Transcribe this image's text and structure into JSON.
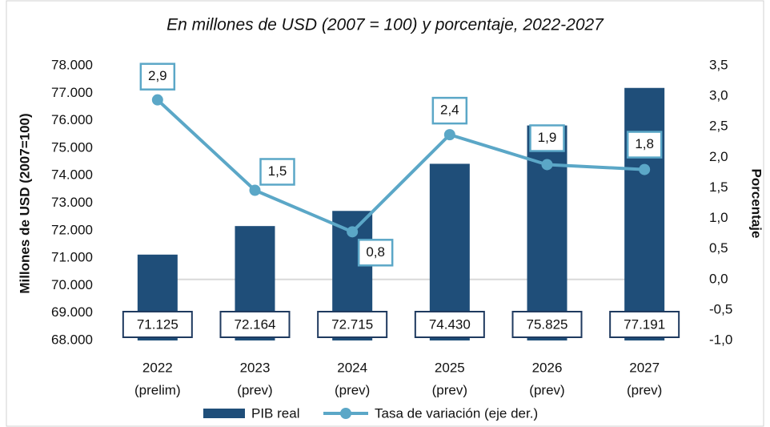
{
  "chart_data": {
    "type": "bar-line",
    "title": "En millones de USD (2007 = 100) y porcentaje, 2022-2027",
    "ylabel": "Millones de USD (2007=100)",
    "y2label": "Porcentaje",
    "categories": [
      [
        "2022",
        "(prelim)"
      ],
      [
        "2023",
        "(prev)"
      ],
      [
        "2024",
        "(prev)"
      ],
      [
        "2025",
        "(prev)"
      ],
      [
        "2026",
        "(prev)"
      ],
      [
        "2027",
        "(prev)"
      ]
    ],
    "series": [
      {
        "name": "PIB real",
        "type": "bar",
        "color": "#1f4e79",
        "values": [
          71125,
          72164,
          72715,
          74430,
          75825,
          77191
        ],
        "value_labels": [
          "71.125",
          "72.164",
          "72.715",
          "74.430",
          "75.825",
          "77.191"
        ]
      },
      {
        "name": "Tasa de variación (eje der.)",
        "type": "line",
        "axis": "y2",
        "color": "#5ba7c7",
        "values": [
          2.94,
          1.46,
          0.78,
          2.37,
          1.88,
          1.8
        ],
        "value_labels": [
          "2,9",
          "1,5",
          "0,8",
          "2,4",
          "1,9",
          "1,8"
        ]
      }
    ],
    "ylim": [
      68000,
      78000
    ],
    "yticks": [
      {
        "value": 68000,
        "label": "68.000"
      },
      {
        "value": 69000,
        "label": "69.000"
      },
      {
        "value": 70000,
        "label": "70.000"
      },
      {
        "value": 71000,
        "label": "71.000"
      },
      {
        "value": 72000,
        "label": "72.000"
      },
      {
        "value": 73000,
        "label": "73.000"
      },
      {
        "value": 74000,
        "label": "74.000"
      },
      {
        "value": 75000,
        "label": "75.000"
      },
      {
        "value": 76000,
        "label": "76.000"
      },
      {
        "value": 77000,
        "label": "77.000"
      },
      {
        "value": 78000,
        "label": "78.000"
      }
    ],
    "y2lim": [
      -1,
      3.5
    ],
    "y2ticks": [
      {
        "value": -1,
        "label": "-1,0"
      },
      {
        "value": -0.5,
        "label": "-0,5"
      },
      {
        "value": 0,
        "label": "0,0"
      },
      {
        "value": 0.5,
        "label": "0,5"
      },
      {
        "value": 1,
        "label": "1,0"
      },
      {
        "value": 1.5,
        "label": "1,5"
      },
      {
        "value": 2,
        "label": "2,0"
      },
      {
        "value": 2.5,
        "label": "2,5"
      },
      {
        "value": 3,
        "label": "3,0"
      },
      {
        "value": 3.5,
        "label": "3,5"
      }
    ]
  }
}
